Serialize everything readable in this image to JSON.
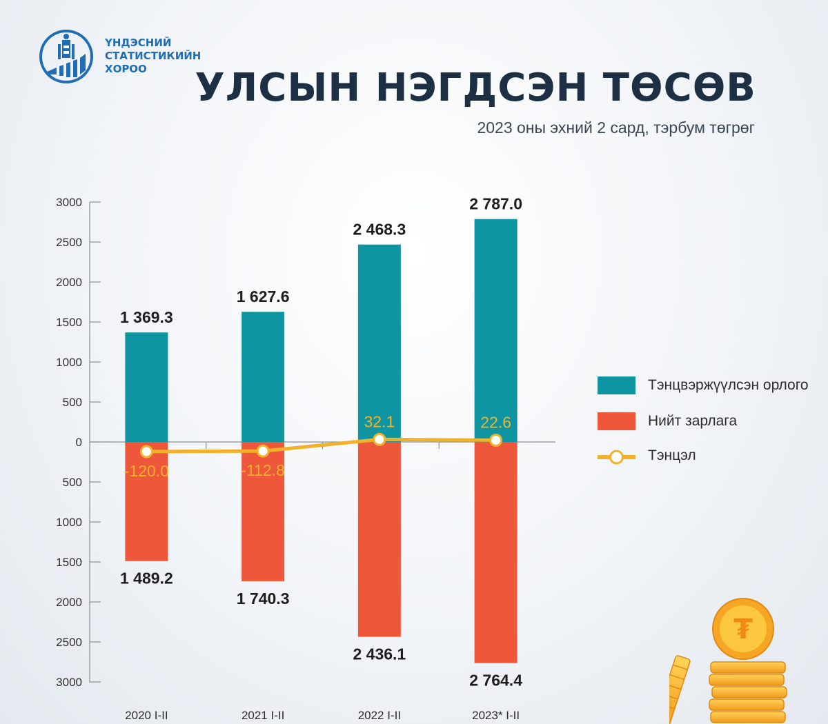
{
  "header": {
    "org_line1": "ҮНДЭСНИЙ",
    "org_line2": "СТАТИСТИКИЙН",
    "org_line3": "ХОРОО",
    "title": "УЛСЫН НЭГДСЭН ТӨСӨВ",
    "subtitle": "2023 оны эхний 2 сард, тэрбум төгрөг"
  },
  "colors": {
    "revenue": "#0e95a1",
    "expense": "#ef573a",
    "balance": "#f0b12b",
    "brand": "#1f6db4"
  },
  "chart_data": {
    "type": "bar",
    "categories": [
      "2020 I-II",
      "2021 I-II",
      "2022 I-II",
      "2023* I-II"
    ],
    "series": [
      {
        "name": "Тэнцвэржүүлсэн орлого",
        "values": [
          1369.3,
          1627.6,
          2468.3,
          2787.0
        ],
        "labels": [
          "1 369.3",
          "1 627.6",
          "2 468.3",
          "2 787.0"
        ],
        "direction": "up"
      },
      {
        "name": "Нийт зарлага",
        "values": [
          1489.2,
          1740.3,
          2436.1,
          2764.4
        ],
        "labels": [
          "1 489.2",
          "1 740.3",
          "2 436.1",
          "2 764.4"
        ],
        "direction": "down"
      },
      {
        "name": "Тэнцэл",
        "type": "line",
        "values": [
          -120.0,
          -112.8,
          32.1,
          22.6
        ],
        "labels": [
          "-120.0",
          "-112.8",
          "32.1",
          "22.6"
        ]
      }
    ],
    "y_ticks_up": [
      "3000",
      "2500",
      "2000",
      "1500",
      "1000",
      "500",
      "0"
    ],
    "y_ticks_down": [
      "500",
      "1000",
      "1500",
      "2000",
      "2500",
      "3000"
    ],
    "ylim": [
      -3000,
      3000
    ],
    "legend_position": "right"
  },
  "legend": [
    {
      "label": "Тэнцвэржүүлсэн орлого",
      "color": "#0e95a1"
    },
    {
      "label": "Нийт зарлага",
      "color": "#ef573a"
    },
    {
      "label": "Тэнцэл",
      "color": "#f0b12b"
    }
  ],
  "decor": {
    "coin_symbol": "₮",
    "logo_icon": "soyombo-logo-icon",
    "coins_icon": "coin-stack-icon"
  }
}
